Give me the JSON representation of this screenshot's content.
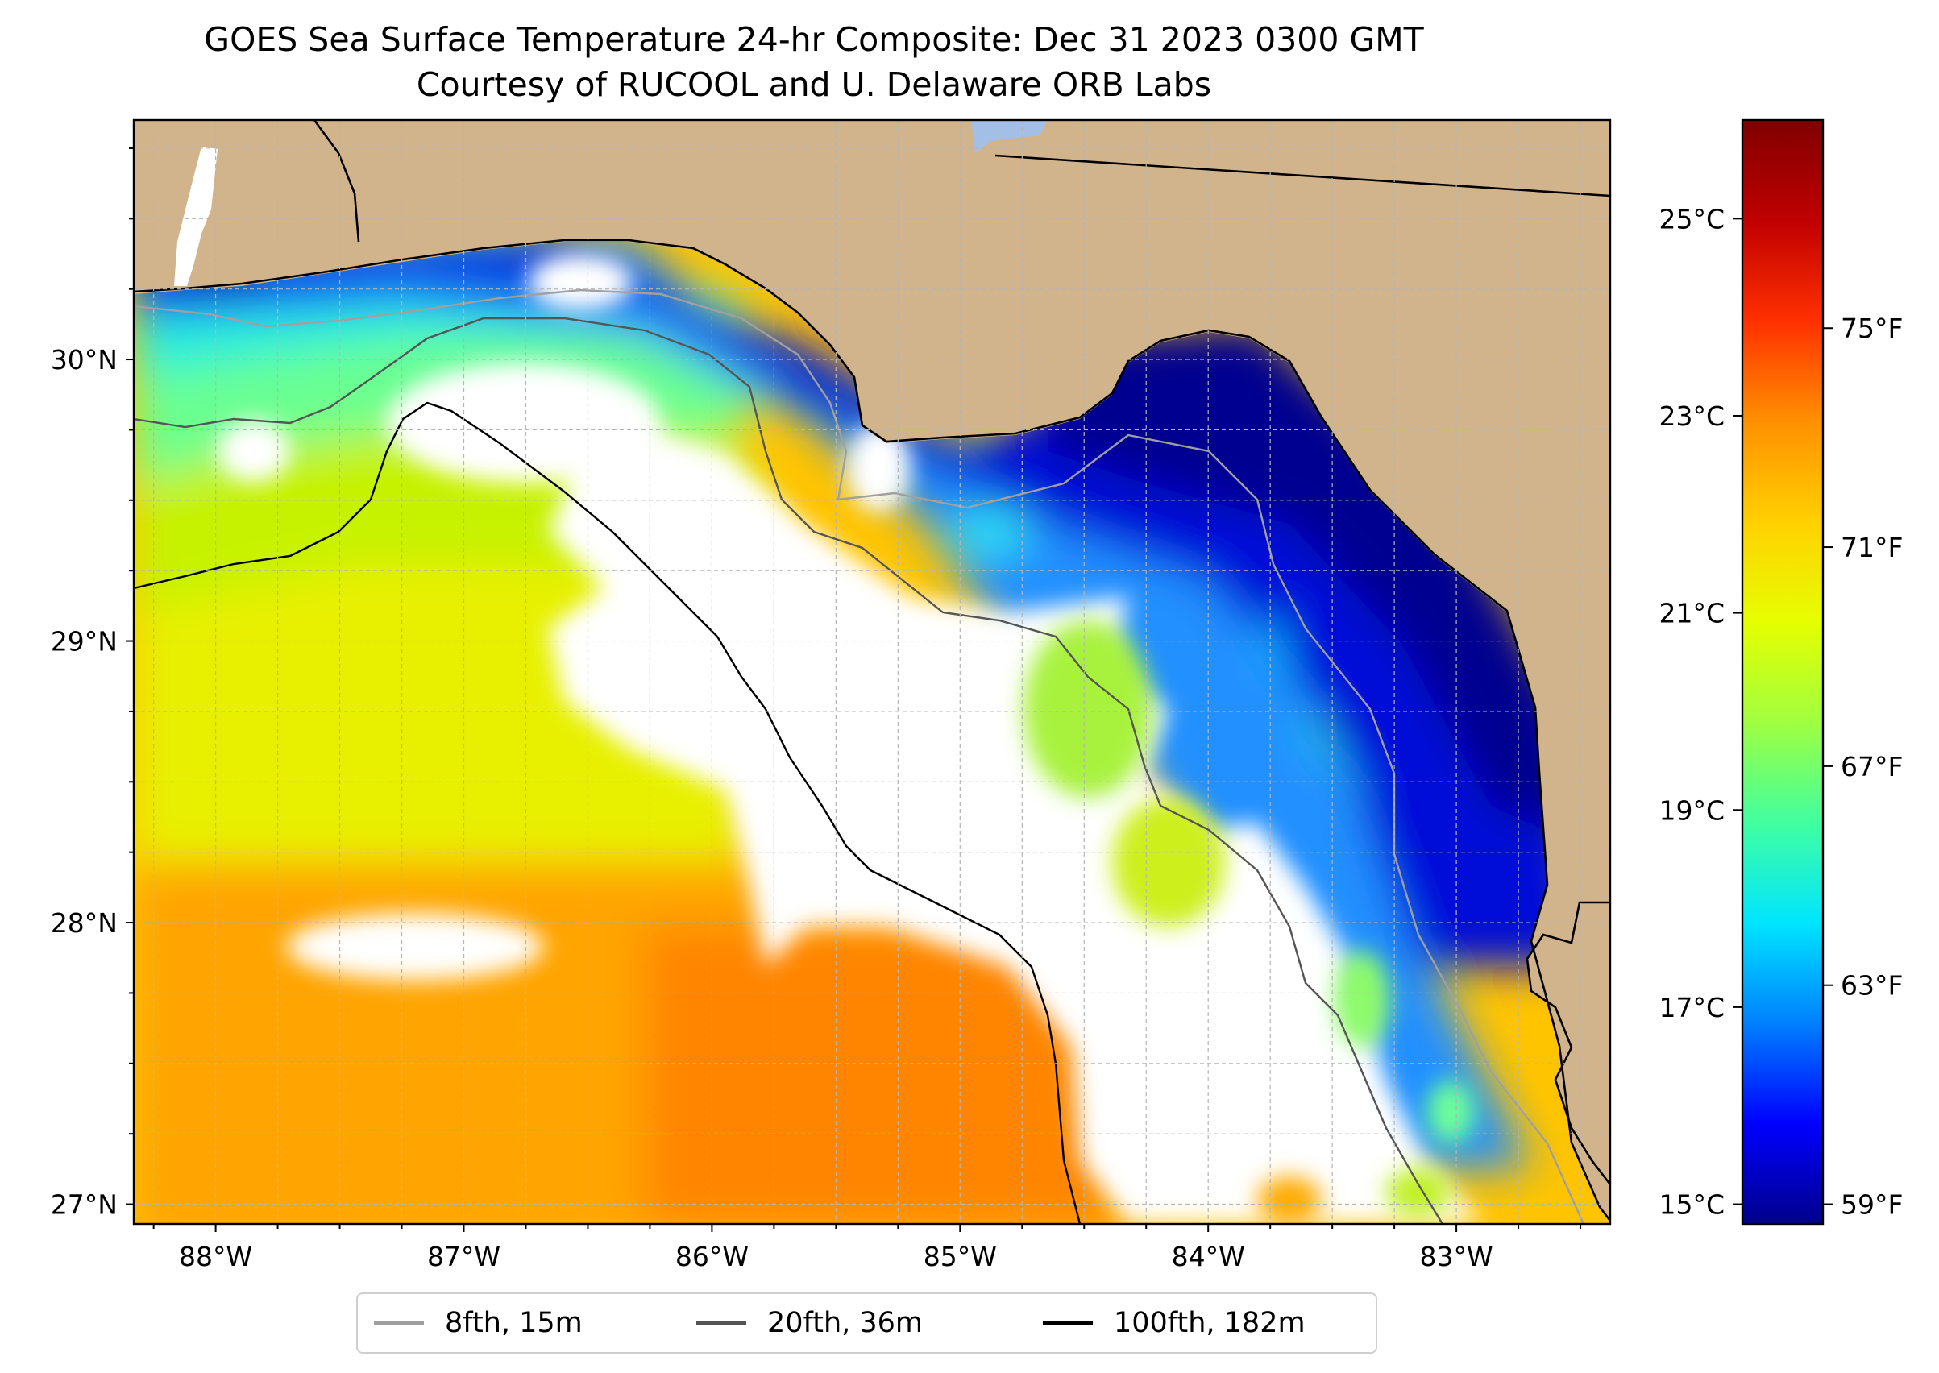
{
  "title": {
    "line1": "GOES Sea Surface Temperature 24-hr Composite: Dec 31 2023 0300 GMT",
    "line2": "Courtesy of RUCOOL and U. Delaware ORB Labs"
  },
  "map": {
    "extent": {
      "lon_min": -88.33,
      "lon_max": -82.38,
      "lat_min": 26.93,
      "lat_max": 30.85
    },
    "lon_ticks": [
      {
        "value": -88,
        "label": "88°W"
      },
      {
        "value": -87,
        "label": "87°W"
      },
      {
        "value": -86,
        "label": "86°W"
      },
      {
        "value": -85,
        "label": "85°W"
      },
      {
        "value": -84,
        "label": "84°W"
      },
      {
        "value": -83,
        "label": "83°W"
      }
    ],
    "lat_ticks": [
      {
        "value": 27,
        "label": "27°N"
      },
      {
        "value": 28,
        "label": "28°N"
      },
      {
        "value": 29,
        "label": "29°N"
      },
      {
        "value": 30,
        "label": "30°N"
      }
    ],
    "colors": {
      "land": "#d2b48c",
      "no_data": "#ffffff",
      "coast": "#000000",
      "gridline": "#b5b5b5"
    }
  },
  "colorbar": {
    "range_c": [
      14.8,
      26.0
    ],
    "celsius_ticks": [
      {
        "value": 15,
        "label": "15°C"
      },
      {
        "value": 17,
        "label": "17°C"
      },
      {
        "value": 19,
        "label": "19°C"
      },
      {
        "value": 21,
        "label": "21°C"
      },
      {
        "value": 23,
        "label": "23°C"
      },
      {
        "value": 25,
        "label": "25°C"
      }
    ],
    "fahrenheit_ticks": [
      {
        "value": 59,
        "label": "59°F"
      },
      {
        "value": 63,
        "label": "63°F"
      },
      {
        "value": 67,
        "label": "67°F"
      },
      {
        "value": 71,
        "label": "71°F"
      },
      {
        "value": 75,
        "label": "75°F"
      }
    ],
    "colormap": [
      "#00008b",
      "#0000ff",
      "#0080ff",
      "#00e5ff",
      "#40ffa0",
      "#a0ff40",
      "#e6ff00",
      "#ffd000",
      "#ff9000",
      "#ff3000",
      "#c00000",
      "#800000"
    ]
  },
  "legend": {
    "items": [
      {
        "label": "8fth, 15m",
        "color": "#a0a0a0"
      },
      {
        "label": "20fth, 36m",
        "color": "#555555"
      },
      {
        "label": "100fth, 182m",
        "color": "#000000"
      }
    ]
  }
}
